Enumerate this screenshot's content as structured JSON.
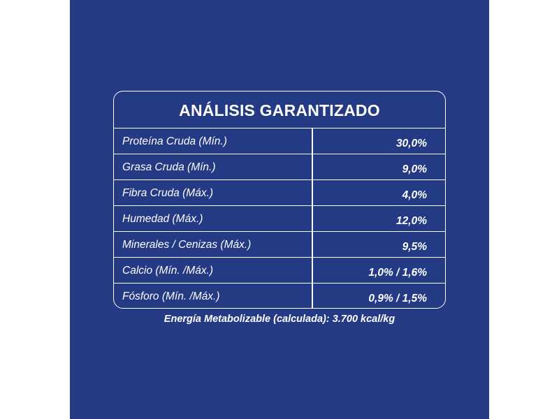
{
  "title": "ANÁLISIS GARANTIZADO",
  "rows": [
    {
      "label": "Proteína Cruda (Mín.)",
      "value": "30,0%"
    },
    {
      "label": "Grasa Cruda (Mín.)",
      "value": "9,0%"
    },
    {
      "label": "Fibra Cruda (Máx.)",
      "value": "4,0%"
    },
    {
      "label": "Humedad (Máx.)",
      "value": "12,0%"
    },
    {
      "label": "Minerales / Cenizas (Máx.)",
      "value": "9,5%"
    },
    {
      "label": "Calcio (Mín. /Máx.)",
      "value": "1,0% / 1,6%"
    },
    {
      "label": "Fósforo (Mín. /Máx.)",
      "value": "0,9% / 1,5%"
    }
  ],
  "footnote": "Energía Metabolizable (calculada): 3.700 kcal/kg",
  "colors": {
    "background": "#253a84",
    "text": "#ffffff",
    "border": "#ffffff"
  }
}
